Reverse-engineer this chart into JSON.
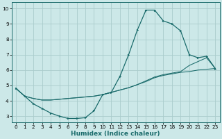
{
  "title": "",
  "xlabel": "Humidex (Indice chaleur)",
  "bg_color": "#cce8e8",
  "grid_color": "#aacccc",
  "line_color": "#1a6b6b",
  "xlim": [
    -0.5,
    23.5
  ],
  "ylim": [
    2.6,
    10.4
  ],
  "xticks": [
    0,
    1,
    2,
    3,
    4,
    5,
    6,
    7,
    8,
    9,
    10,
    11,
    12,
    13,
    14,
    15,
    16,
    17,
    18,
    19,
    20,
    21,
    22,
    23
  ],
  "yticks": [
    3,
    4,
    5,
    6,
    7,
    8,
    9,
    10
  ],
  "line1_x": [
    0,
    1,
    2,
    3,
    4,
    5,
    6,
    7,
    8,
    9,
    10,
    11,
    12,
    13,
    14,
    15,
    16,
    17,
    18,
    19,
    20,
    21,
    22,
    23
  ],
  "line1_y": [
    4.8,
    4.3,
    3.8,
    3.5,
    3.2,
    3.0,
    2.85,
    2.85,
    2.9,
    3.35,
    4.4,
    4.55,
    5.6,
    7.0,
    8.6,
    9.9,
    9.9,
    9.2,
    9.0,
    8.55,
    7.0,
    6.8,
    6.9,
    6.1
  ],
  "line2_x": [
    0,
    1,
    2,
    3,
    4,
    5,
    6,
    7,
    8,
    9,
    10,
    11,
    12,
    13,
    14,
    15,
    16,
    17,
    18,
    19,
    20,
    21,
    22,
    23
  ],
  "line2_y": [
    4.8,
    4.3,
    4.15,
    4.05,
    4.05,
    4.1,
    4.15,
    4.2,
    4.25,
    4.3,
    4.4,
    4.55,
    4.7,
    4.85,
    5.05,
    5.25,
    5.5,
    5.65,
    5.75,
    5.85,
    5.9,
    6.0,
    6.05,
    6.1
  ],
  "line3_x": [
    0,
    1,
    2,
    3,
    4,
    5,
    6,
    7,
    8,
    9,
    10,
    11,
    12,
    13,
    14,
    15,
    16,
    17,
    18,
    19,
    20,
    21,
    22,
    23
  ],
  "line3_y": [
    4.8,
    4.3,
    4.15,
    4.05,
    4.05,
    4.1,
    4.15,
    4.2,
    4.25,
    4.3,
    4.4,
    4.55,
    4.7,
    4.85,
    5.05,
    5.3,
    5.55,
    5.7,
    5.8,
    5.9,
    6.3,
    6.55,
    6.8,
    6.1
  ],
  "xlabel_fontsize": 6.5,
  "tick_fontsize": 5.2,
  "lw_main": 0.9,
  "lw_flat": 0.75
}
